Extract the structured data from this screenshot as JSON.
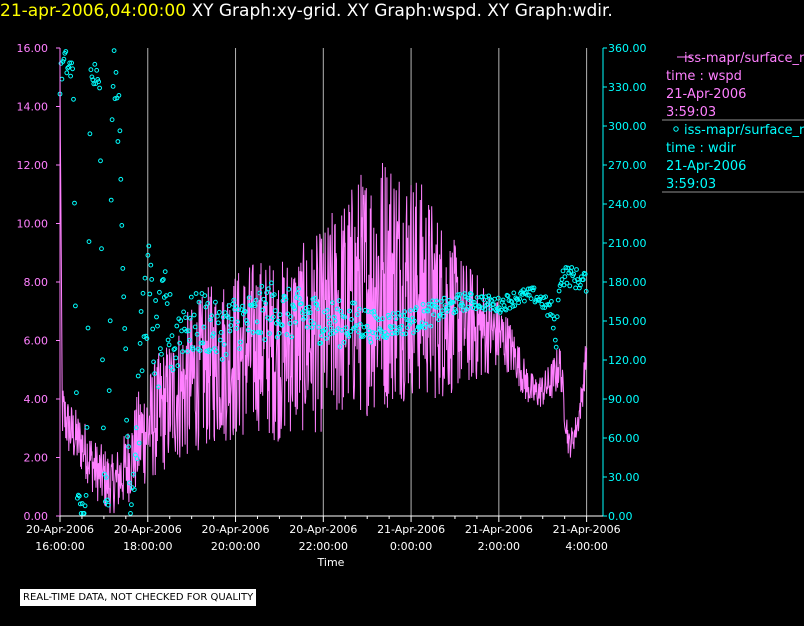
{
  "header": {
    "timestamp": "21-apr-2006,04:00:00",
    "graph_titles": "XY Graph:xy-grid.  XY Graph:wspd.  XY Graph:wdir."
  },
  "legend": [
    {
      "symbol": "line",
      "name": "iss-mapr/surface_r",
      "var": "time : wspd",
      "date": "21-Apr-2006",
      "time": "3:59:03",
      "color": "#ff80ff"
    },
    {
      "symbol": "circle",
      "name": "iss-mapr/surface_r",
      "var": "time : wdir",
      "date": "21-Apr-2006",
      "time": "3:59:03",
      "color": "#00ffff"
    }
  ],
  "footer": {
    "disclaimer": "REAL-TIME DATA, NOT CHECKED FOR QUALITY"
  },
  "colors": {
    "wspd": "#ff80ff",
    "wdir": "#00ffff",
    "grid": "#b4b4b4",
    "background": "#000000"
  },
  "chart_data": {
    "type": "line+scatter",
    "xlabel": "Time",
    "xlim_hours": [
      16.0,
      28.1
    ],
    "x_ticks": [
      {
        "hour": 16,
        "date": "20-Apr-2006",
        "time": "16:00:00"
      },
      {
        "hour": 18,
        "date": "20-Apr-2006",
        "time": "18:00:00"
      },
      {
        "hour": 20,
        "date": "20-Apr-2006",
        "time": "20:00:00"
      },
      {
        "hour": 22,
        "date": "20-Apr-2006",
        "time": "22:00:00"
      },
      {
        "hour": 24,
        "date": "21-Apr-2006",
        "time": "0:00:00"
      },
      {
        "hour": 26,
        "date": "21-Apr-2006",
        "time": "2:00:00"
      },
      {
        "hour": 28,
        "date": "21-Apr-2006",
        "time": "4:00:00"
      }
    ],
    "y_left": {
      "label": "wspd",
      "range": [
        0,
        16
      ],
      "ticks": [
        "0.00",
        "2.00",
        "4.00",
        "6.00",
        "8.00",
        "10.00",
        "12.00",
        "14.00",
        "16.00"
      ]
    },
    "y_right": {
      "label": "wdir",
      "range": [
        0,
        360
      ],
      "ticks": [
        "0.00",
        "30.00",
        "60.00",
        "90.00",
        "120.00",
        "150.00",
        "180.00",
        "210.00",
        "240.00",
        "270.00",
        "300.00",
        "330.00",
        "360.00"
      ]
    },
    "series": [
      {
        "name": "wspd",
        "axis": "left",
        "style": "line",
        "x": [
          16.0,
          16.05,
          16.2,
          16.4,
          16.6,
          16.8,
          17.0,
          17.2,
          17.4,
          17.6,
          17.8,
          18.0,
          18.2,
          18.4,
          18.6,
          18.8,
          19.0,
          19.2,
          19.4,
          19.6,
          19.8,
          20.0,
          20.2,
          20.4,
          20.6,
          20.8,
          21.0,
          21.2,
          21.4,
          21.6,
          21.8,
          22.0,
          22.2,
          22.4,
          22.6,
          22.8,
          23.0,
          23.2,
          23.4,
          23.6,
          23.8,
          24.0,
          24.2,
          24.4,
          24.6,
          24.8,
          25.0,
          25.2,
          25.4,
          25.6,
          25.8,
          26.0,
          26.2,
          26.4,
          26.6,
          26.8,
          27.0,
          27.2,
          27.3,
          27.4,
          27.5,
          27.6,
          27.7,
          27.8,
          27.9,
          28.0
        ],
        "y": [
          15.2,
          3.6,
          3.0,
          2.6,
          2.2,
          1.6,
          1.3,
          1.0,
          1.4,
          1.9,
          2.6,
          3.0,
          3.4,
          3.7,
          4.1,
          4.3,
          4.6,
          4.9,
          5.1,
          5.3,
          5.4,
          5.5,
          5.6,
          5.8,
          5.9,
          5.7,
          5.6,
          5.9,
          6.0,
          6.1,
          6.2,
          6.3,
          6.8,
          7.0,
          7.3,
          7.6,
          7.8,
          8.0,
          8.1,
          8.2,
          8.1,
          8.0,
          7.8,
          7.5,
          7.2,
          7.0,
          6.8,
          6.6,
          6.5,
          6.4,
          6.3,
          6.2,
          5.9,
          5.4,
          4.6,
          4.2,
          4.3,
          4.6,
          4.9,
          5.2,
          3.6,
          2.4,
          2.7,
          3.2,
          4.2,
          5.6
        ],
        "spread": [
          0,
          1.0,
          1.0,
          1.0,
          1.0,
          1.0,
          1.1,
          1.1,
          1.2,
          1.4,
          1.8,
          1.9,
          2.1,
          2.2,
          2.3,
          2.5,
          2.6,
          2.6,
          2.8,
          2.8,
          2.9,
          3.0,
          3.0,
          3.0,
          3.0,
          3.1,
          3.1,
          3.2,
          3.2,
          3.3,
          3.4,
          3.5,
          3.7,
          3.8,
          4.0,
          4.2,
          4.4,
          4.5,
          4.6,
          4.4,
          4.2,
          4.0,
          3.8,
          3.6,
          3.3,
          3.0,
          2.6,
          2.2,
          2.0,
          1.8,
          1.4,
          1.2,
          1.0,
          0.8,
          0.7,
          0.6,
          0.6,
          0.7,
          0.8,
          0.7,
          0.6,
          0.5,
          0.5,
          0.5,
          0.6,
          0.7
        ]
      },
      {
        "name": "wdir",
        "axis": "right",
        "style": "circle",
        "x": [
          16.0,
          16.1,
          16.2,
          16.3,
          16.4,
          16.5,
          16.6,
          16.7,
          16.8,
          16.9,
          17.0,
          17.1,
          17.2,
          17.3,
          17.4,
          17.5,
          17.6,
          17.7,
          17.8,
          17.9,
          18.0,
          18.2,
          18.4,
          18.6,
          18.8,
          19.0,
          19.3,
          19.6,
          20.0,
          20.4,
          20.8,
          21.2,
          21.6,
          22.0,
          22.4,
          22.8,
          23.2,
          23.6,
          24.0,
          24.4,
          24.8,
          25.2,
          25.6,
          26.0,
          26.4,
          26.8,
          27.0,
          27.1,
          27.2,
          27.3,
          27.4,
          27.6,
          27.8,
          28.0
        ],
        "y": [
          335,
          350,
          345,
          340,
          10,
          4,
          8,
          350,
          340,
          345,
          25,
          20,
          350,
          340,
          230,
          120,
          15,
          40,
          90,
          150,
          180,
          125,
          155,
          130,
          150,
          145,
          150,
          140,
          150,
          150,
          160,
          155,
          155,
          150,
          148,
          150,
          145,
          148,
          150,
          155,
          160,
          165,
          165,
          162,
          168,
          170,
          165,
          160,
          158,
          135,
          185,
          185,
          182,
          180
        ],
        "spread": [
          12,
          10,
          10,
          14,
          10,
          8,
          10,
          10,
          12,
          10,
          14,
          12,
          20,
          30,
          40,
          30,
          20,
          30,
          40,
          40,
          40,
          40,
          35,
          30,
          28,
          25,
          25,
          22,
          22,
          22,
          22,
          20,
          20,
          18,
          18,
          15,
          12,
          10,
          10,
          10,
          8,
          7,
          6,
          6,
          6,
          6,
          6,
          8,
          8,
          10,
          8,
          8,
          8,
          8
        ]
      }
    ]
  }
}
